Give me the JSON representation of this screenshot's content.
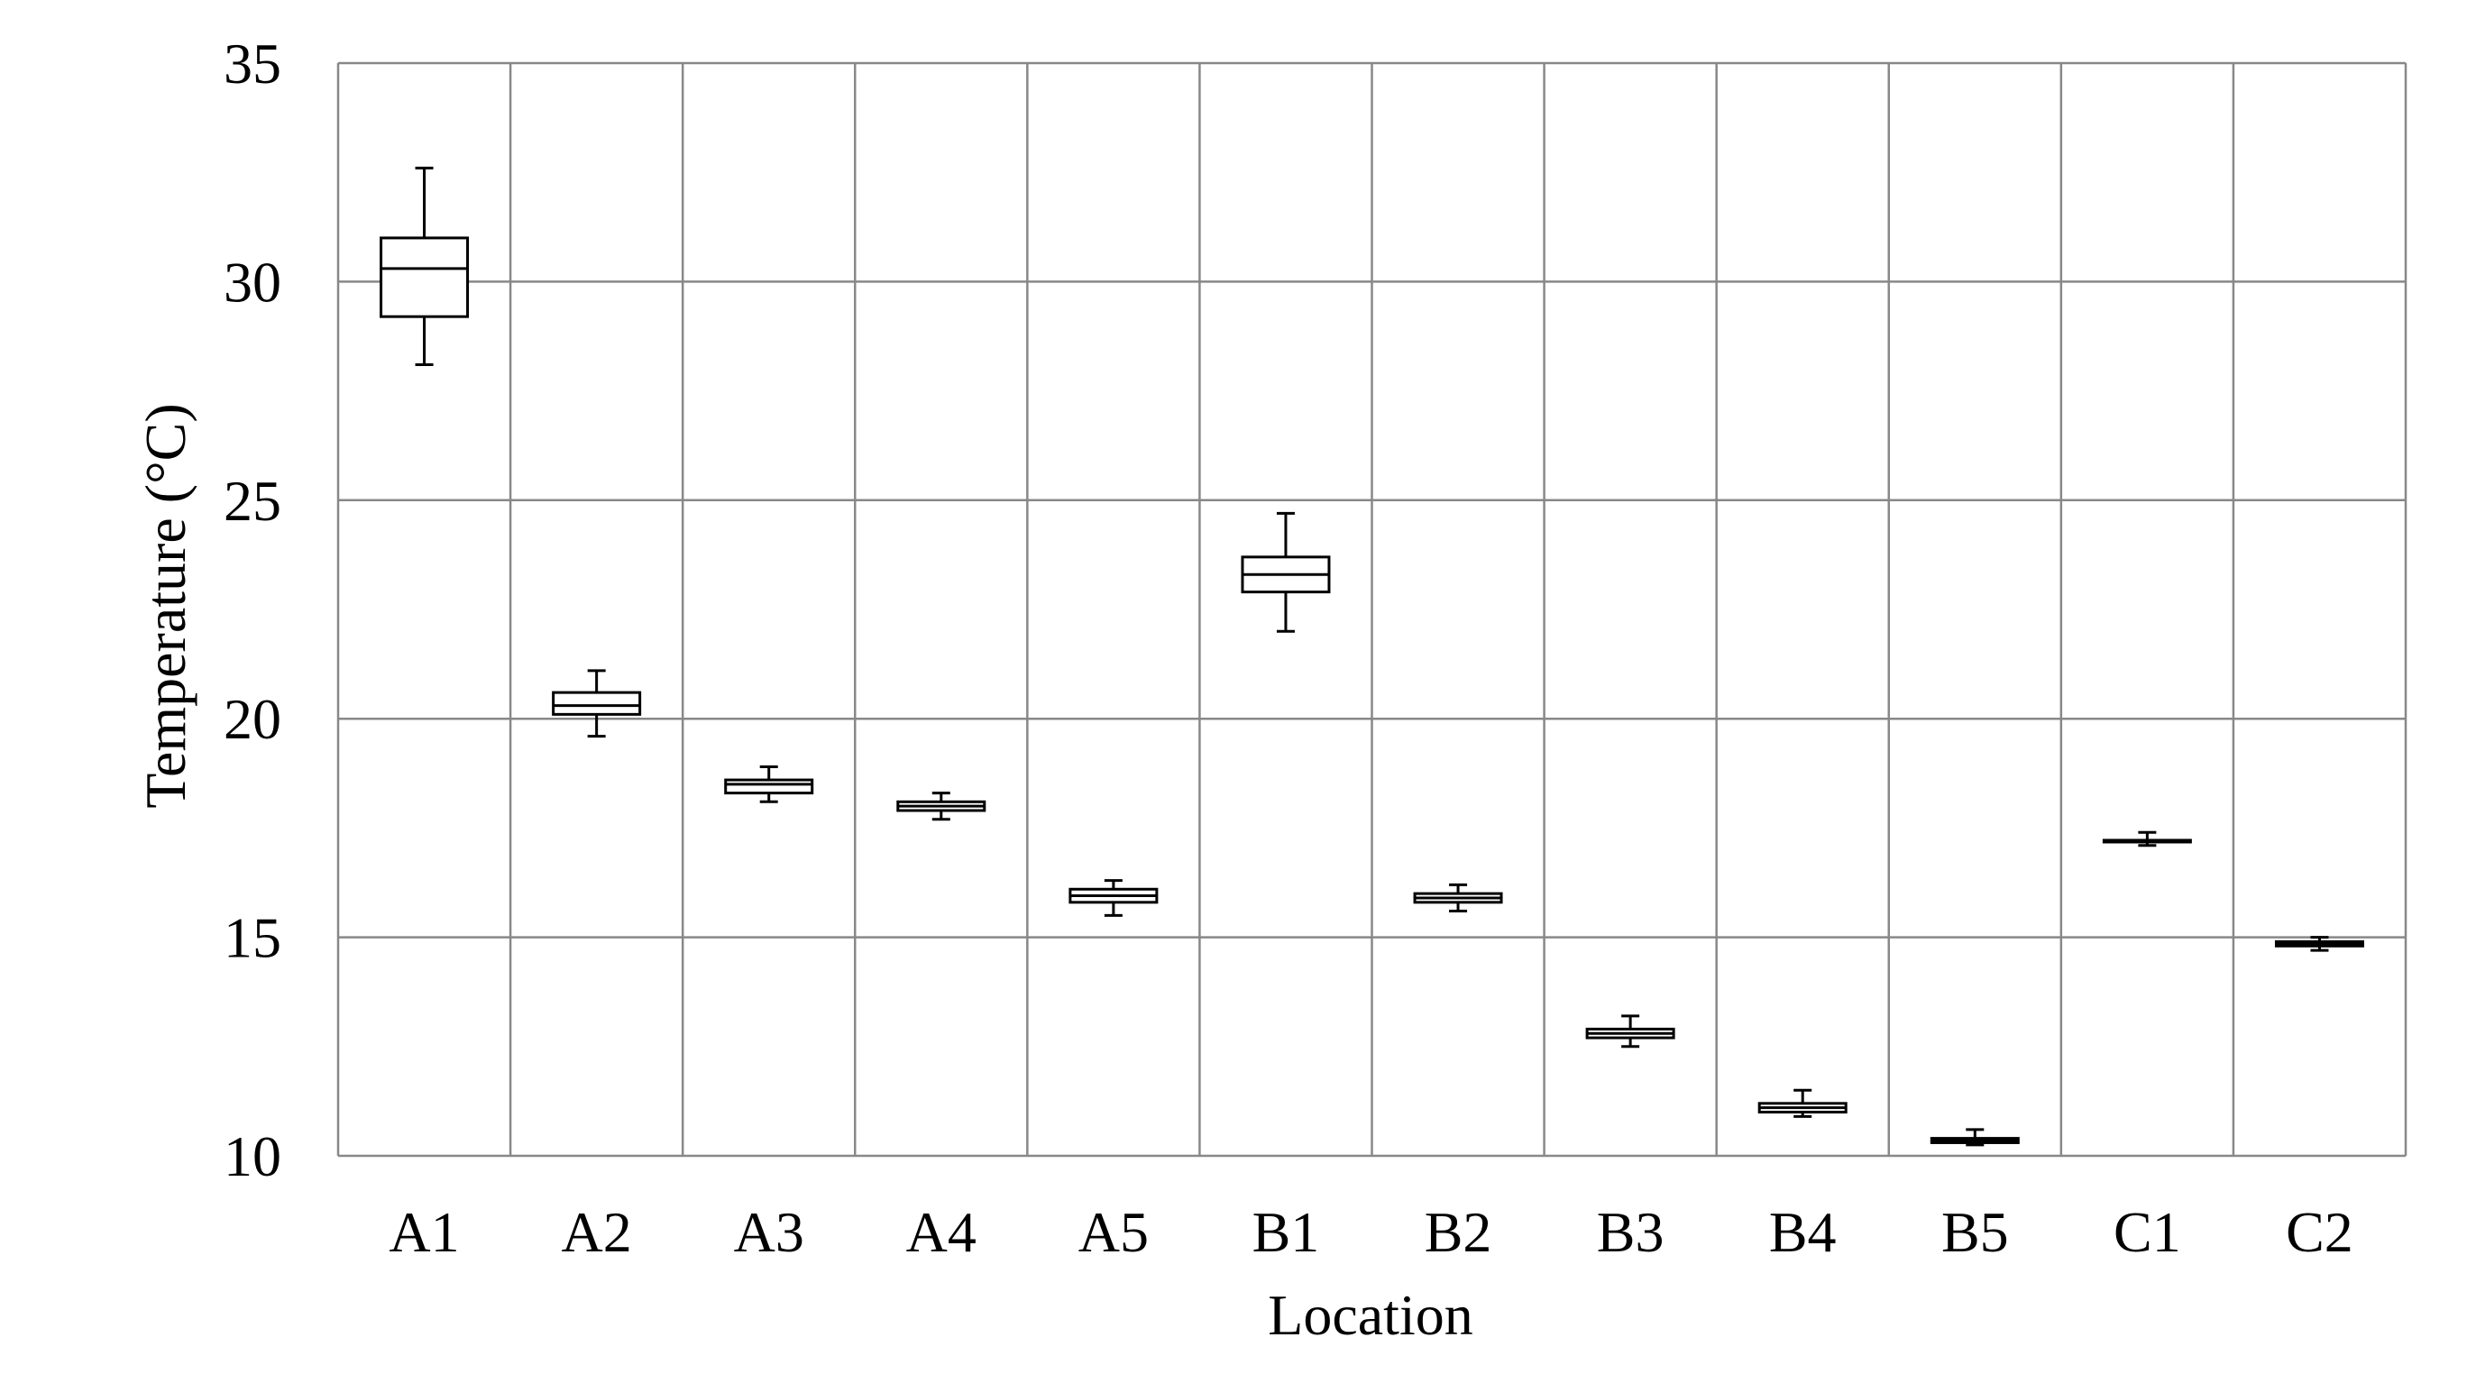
{
  "chart_data": {
    "type": "box",
    "xlabel": "Location",
    "ylabel": "Temperature  (°C)",
    "ylim": [
      10,
      35
    ],
    "yticks": [
      10,
      15,
      20,
      25,
      30,
      35
    ],
    "grid": true,
    "categories": [
      "A1",
      "A2",
      "A3",
      "A4",
      "A5",
      "B1",
      "B2",
      "B3",
      "B4",
      "B5",
      "C1",
      "C2"
    ],
    "boxes": [
      {
        "category": "A1",
        "min": 28.1,
        "q1": 29.2,
        "median": 30.3,
        "q3": 31.0,
        "max": 32.6
      },
      {
        "category": "A2",
        "min": 19.6,
        "q1": 20.1,
        "median": 20.3,
        "q3": 20.6,
        "max": 21.1
      },
      {
        "category": "A3",
        "min": 18.1,
        "q1": 18.3,
        "median": 18.5,
        "q3": 18.6,
        "max": 18.9
      },
      {
        "category": "A4",
        "min": 17.7,
        "q1": 17.9,
        "median": 18.0,
        "q3": 18.1,
        "max": 18.3
      },
      {
        "category": "A5",
        "min": 15.5,
        "q1": 15.8,
        "median": 15.95,
        "q3": 16.1,
        "max": 16.3
      },
      {
        "category": "B1",
        "min": 22.0,
        "q1": 22.9,
        "median": 23.3,
        "q3": 23.7,
        "max": 24.7
      },
      {
        "category": "B2",
        "min": 15.6,
        "q1": 15.8,
        "median": 15.9,
        "q3": 16.0,
        "max": 16.2
      },
      {
        "category": "B3",
        "min": 12.5,
        "q1": 12.7,
        "median": 12.8,
        "q3": 12.9,
        "max": 13.2
      },
      {
        "category": "B4",
        "min": 10.9,
        "q1": 11.0,
        "median": 11.1,
        "q3": 11.2,
        "max": 11.5
      },
      {
        "category": "B5",
        "min": 10.25,
        "q1": 10.3,
        "median": 10.35,
        "q3": 10.4,
        "max": 10.6
      },
      {
        "category": "C1",
        "min": 17.1,
        "q1": 17.18,
        "median": 17.2,
        "q3": 17.22,
        "max": 17.4
      },
      {
        "category": "C2",
        "min": 14.7,
        "q1": 14.8,
        "median": 14.85,
        "q3": 14.9,
        "max": 15.0
      }
    ]
  }
}
